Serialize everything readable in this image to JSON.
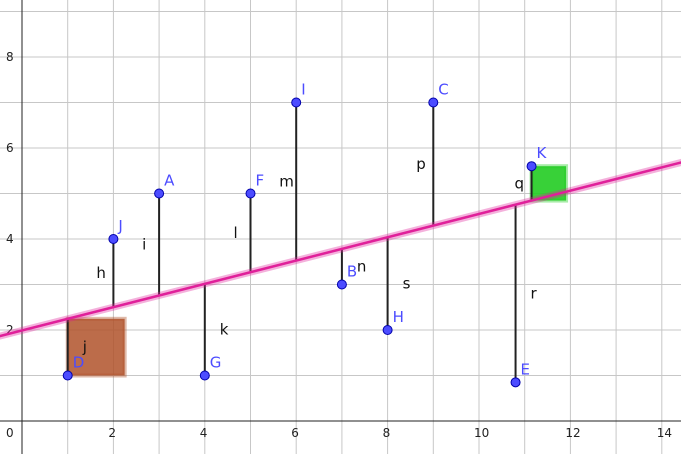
{
  "graph": {
    "x_ticks": [
      "0",
      "2",
      "4",
      "6",
      "8",
      "10",
      "12",
      "14"
    ],
    "y_ticks": [
      "2",
      "4",
      "6",
      "8"
    ],
    "colors": {
      "grid": "#c7c7c7",
      "axis": "#222222",
      "line": "#e0209a",
      "point_fill": "#4c4cff",
      "point_stroke": "#0000aa",
      "label": "#4c4cff",
      "square_j": "#b0522a",
      "square_q": "#22cc22"
    },
    "points": [
      {
        "name": "D",
        "x": 1,
        "y": 1
      },
      {
        "name": "J",
        "x": 2,
        "y": 4
      },
      {
        "name": "A",
        "x": 3,
        "y": 5
      },
      {
        "name": "G",
        "x": 4,
        "y": 1
      },
      {
        "name": "F",
        "x": 5,
        "y": 5
      },
      {
        "name": "I",
        "x": 6,
        "y": 7
      },
      {
        "name": "B",
        "x": 7,
        "y": 3
      },
      {
        "name": "H",
        "x": 8,
        "y": 2
      },
      {
        "name": "C",
        "x": 9,
        "y": 7
      },
      {
        "name": "E",
        "x": 10.8,
        "y": 0.85
      },
      {
        "name": "K",
        "x": 11.15,
        "y": 5.6
      }
    ],
    "regression_line": {
      "slope": 0.256,
      "intercept": 1.99
    },
    "segments": [
      {
        "name": "j",
        "point": "D"
      },
      {
        "name": "h",
        "point": "J"
      },
      {
        "name": "i",
        "point": "A"
      },
      {
        "name": "k",
        "point": "G"
      },
      {
        "name": "l",
        "point": "F"
      },
      {
        "name": "m",
        "point": "I"
      },
      {
        "name": "n",
        "point": "B"
      },
      {
        "name": "s",
        "point": "H"
      },
      {
        "name": "p",
        "point": "C"
      },
      {
        "name": "r",
        "point": "E"
      },
      {
        "name": "q",
        "point": "K"
      }
    ],
    "squares": [
      {
        "segment": "j",
        "color_key": "square_j"
      },
      {
        "segment": "q",
        "color_key": "square_q"
      }
    ]
  }
}
